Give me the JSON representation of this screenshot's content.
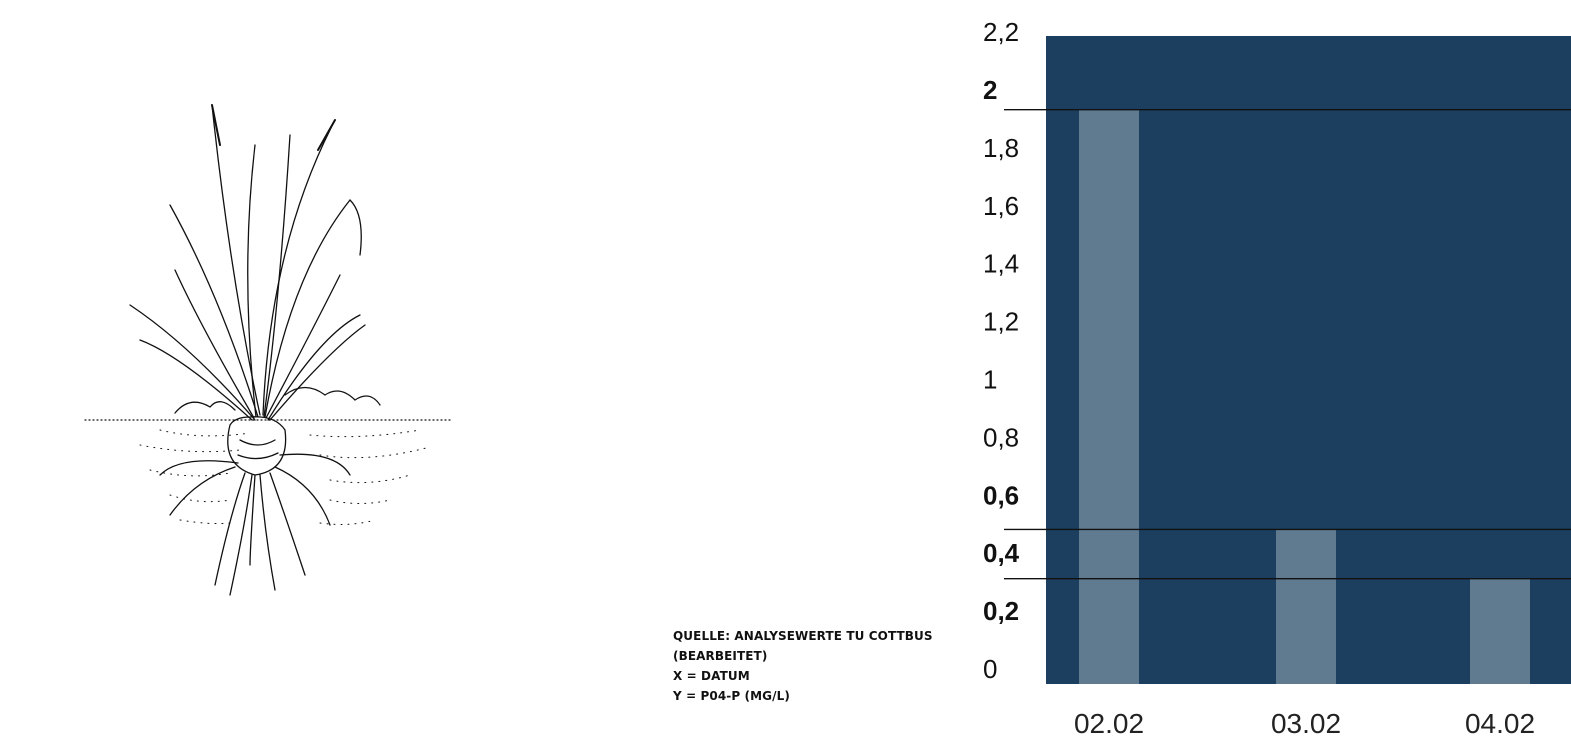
{
  "source_note": {
    "line1": "QUELLE: ANALYSEWERTE TU COTTBUS",
    "line2": "(BEARBEITET)",
    "line3": "X = DATUM",
    "line4": "Y = P04-P (MG/L)"
  },
  "colors": {
    "plot_background": "#1c3f5f",
    "bar": "#607b90",
    "reference_line": "#111111",
    "text": "#111111"
  },
  "illustration": {
    "icon": "grass-plant-with-roots-icon"
  },
  "chart_data": {
    "type": "bar",
    "categories": [
      "02.02",
      "03.02",
      "04.02"
    ],
    "series": [
      {
        "values": [
          1.97,
          0.52,
          0.35
        ]
      }
    ],
    "ylim": [
      0,
      2.2
    ],
    "y_ticks": [
      {
        "value": 0,
        "label": "0",
        "bold": false
      },
      {
        "value": 0.2,
        "label": "0,2",
        "bold": true
      },
      {
        "value": 0.4,
        "label": "0,4",
        "bold": true
      },
      {
        "value": 0.6,
        "label": "0,6",
        "bold": true
      },
      {
        "value": 0.8,
        "label": "0,8",
        "bold": false
      },
      {
        "value": 1.0,
        "label": "1",
        "bold": false
      },
      {
        "value": 1.2,
        "label": "1,2",
        "bold": false
      },
      {
        "value": 1.4,
        "label": "1,4",
        "bold": false
      },
      {
        "value": 1.6,
        "label": "1,6",
        "bold": false
      },
      {
        "value": 1.8,
        "label": "1,8",
        "bold": false
      },
      {
        "value": 2.0,
        "label": "2",
        "bold": true
      },
      {
        "value": 2.2,
        "label": "2,2",
        "bold": false
      }
    ],
    "reference_lines": [
      1.97,
      0.52,
      0.35
    ],
    "grid": false,
    "legend": "none"
  }
}
